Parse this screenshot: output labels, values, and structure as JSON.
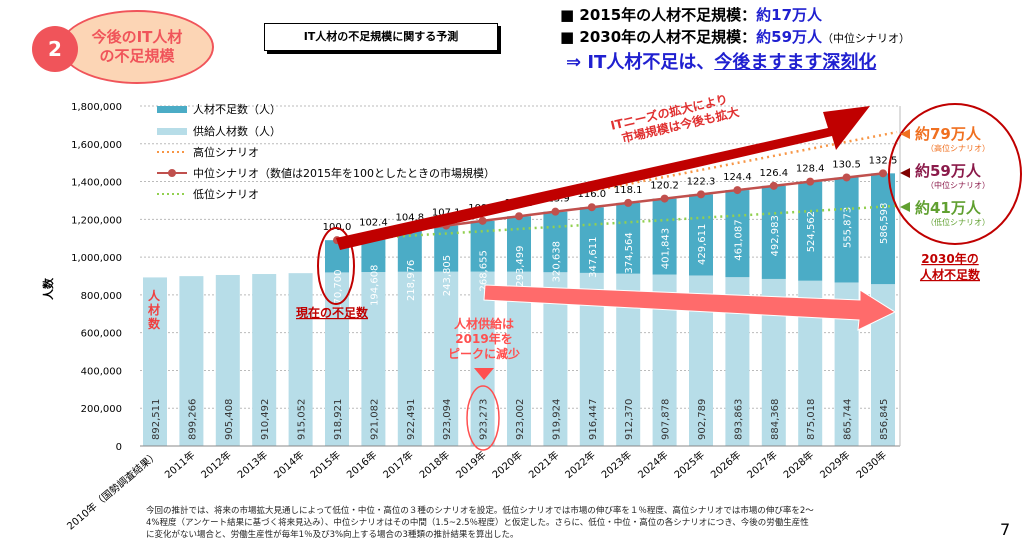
{
  "badge": {
    "number": "2",
    "title_line1": "今後のIT人材",
    "title_line2": "の不足規模"
  },
  "subtitle": "IT人材の不足規模に関する予測",
  "headline": {
    "line1_prefix": "■ 2015年の人材不足規模：",
    "line1_value": "約17万人",
    "line2_prefix": "■ 2030年の人材不足規模：",
    "line2_value": "約59万人",
    "line2_note": "（中位シナリオ）",
    "line3_prefix": "⇒ IT人材不足は、",
    "line3_value": "今後ますます深刻化"
  },
  "colors": {
    "shortage": "#4bacc6",
    "supply": "#b7dde8",
    "high": "#f79646",
    "mid": "#c0504d",
    "low": "#92d050",
    "accent": "#c00000"
  },
  "chart_data": {
    "type": "bar",
    "stacked": true,
    "ylabel": "人数",
    "ylim": [
      0,
      1800000
    ],
    "yticks": [
      "0",
      "200,000",
      "400,000",
      "600,000",
      "800,000",
      "1,000,000",
      "1,200,000",
      "1,400,000",
      "1,600,000",
      "1,800,000"
    ],
    "grid": true,
    "legend_position": "top-left",
    "categories": [
      "2010年（国勢調査結果）",
      "2011年",
      "2012年",
      "2013年",
      "2014年",
      "2015年",
      "2016年",
      "2017年",
      "2018年",
      "2019年",
      "2020年",
      "2021年",
      "2022年",
      "2023年",
      "2024年",
      "2025年",
      "2026年",
      "2027年",
      "2028年",
      "2029年",
      "2030年"
    ],
    "series": [
      {
        "name": "供給人材数（人）",
        "values": [
          892511,
          899266,
          905408,
          910492,
          915052,
          918921,
          921082,
          922491,
          923094,
          923273,
          923002,
          919924,
          916447,
          912370,
          907878,
          902789,
          893863,
          884368,
          875018,
          865744,
          856845
        ],
        "labels": [
          "892,511",
          "899,266",
          "905,408",
          "910,492",
          "915,052",
          "918,921",
          "921,082",
          "922,491",
          "923,094",
          "923,273",
          "923,002",
          "919,924",
          "916,447",
          "912,370",
          "907,878",
          "902,789",
          "893,863",
          "884,368",
          "875,018",
          "865,744",
          "856,845"
        ]
      },
      {
        "name": "人材不足数（人）",
        "values": [
          null,
          null,
          null,
          null,
          null,
          170700,
          194608,
          218976,
          243805,
          268655,
          293499,
          320638,
          347611,
          374564,
          401843,
          429611,
          461087,
          492983,
          524562,
          555873,
          586598
        ],
        "labels": [
          "",
          "",
          "",
          "",
          "",
          "170,700",
          "194,608",
          "218,976",
          "243,805",
          "268,655",
          "293,499",
          "320,638",
          "347,611",
          "374,564",
          "401,843",
          "429,611",
          "461,087",
          "492,983",
          "524,562",
          "555,873",
          "586,598"
        ]
      }
    ],
    "lines": [
      {
        "name": "高位シナリオ",
        "style": "dotted",
        "start": [
          2015,
          1089621
        ],
        "end": [
          2030,
          1646845
        ]
      },
      {
        "name": "中位シナリオ（数値は2015年を100としたときの市場規模）",
        "style": "solid-marker",
        "index_labels": [
          "100.0",
          "102.4",
          "104.8",
          "107.1",
          "109.4",
          "111.6",
          "113.9",
          "116.0",
          "118.1",
          "120.2",
          "122.3",
          "124.4",
          "126.4",
          "128.4",
          "130.5",
          "132.5"
        ]
      },
      {
        "name": "低位シナリオ",
        "style": "dotted",
        "start": [
          2015,
          1089621
        ],
        "end": [
          2030,
          1266845
        ]
      }
    ]
  },
  "annotations": {
    "left_label": "人材数",
    "current_shortage": "現在の不足数",
    "supply_peak": [
      "人材供給は",
      "2019年を",
      "ピークに減少"
    ],
    "market_expansion": [
      "ITニーズの拡大により",
      "市場規模は今後も拡大"
    ],
    "high_value": "約79万人",
    "high_note": "（高位シナリオ）",
    "mid_value": "約59万人",
    "mid_note": "（中位シナリオ）",
    "low_value": "約41万人",
    "low_note": "（低位シナリオ）",
    "shortage_2030": [
      "2030年の",
      "人材不足数"
    ]
  },
  "footnote": [
    "今回の推計では、将来の市場拡大見通しによって低位・中位・高位の３種のシナリオを設定。低位シナリオでは市場の伸び率を１％程度、高位シナリオでは市場の伸び率を2～",
    "4%程度（アンケート結果に基づく将来見込み）、中位シナリオはその中間（1.5~2.5％程度）と仮定した。さらに、低位・中位・高位の各シナリオにつき、今後の労働生産性",
    "に変化がない場合と、労働生産性が毎年1％及び3%向上する場合の3種類の推計結果を算出した。"
  ],
  "page_number": "7"
}
